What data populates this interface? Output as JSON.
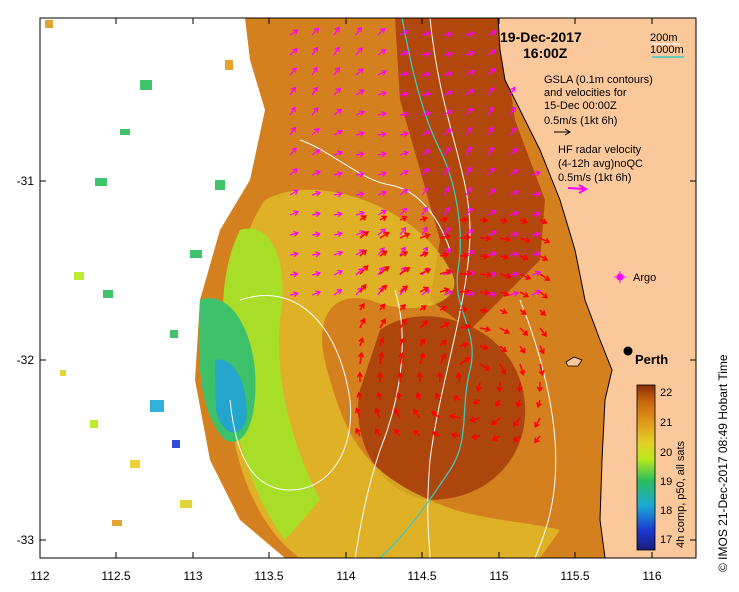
{
  "header": {
    "date": "19-Dec-2017",
    "time": "16:00Z"
  },
  "legend": {
    "contour_200": "200m",
    "contour_1000": "1000m",
    "gsla_lines": [
      "GSLA (0.1m contours)",
      "and velocities for",
      "15-Dec 00:00Z",
      "0.5m/s (1kt 6h)"
    ],
    "hf_lines": [
      "HF radar velocity",
      "(4-12h avg)noQC",
      "0.5m/s (1kt 6h)"
    ]
  },
  "places": {
    "argo": "Argo",
    "perth": "Perth"
  },
  "axes": {
    "x_ticks": [
      "112",
      "112.5",
      "113",
      "113.5",
      "114",
      "114.5",
      "115",
      "115.5",
      "116"
    ],
    "y_ticks": [
      "-31",
      "-32",
      "-33"
    ]
  },
  "colorbar": {
    "label": "4h comp, p50, all sats",
    "ticks": [
      "22",
      "21",
      "20",
      "19",
      "18",
      "17"
    ],
    "min": 16.8,
    "max": 22.1
  },
  "credit": "© IMOS 21-Dec-2017 08:49 Hobart Time",
  "colors": {
    "land": "#fbc89b",
    "contour_200": "#3cc9c0",
    "contour_1000": "#ffffff",
    "gsla_arrow": "#ff00ff",
    "hf_arrow": "#ff0000",
    "warm": "#8b2a06",
    "cool": "#1a3ad2"
  }
}
